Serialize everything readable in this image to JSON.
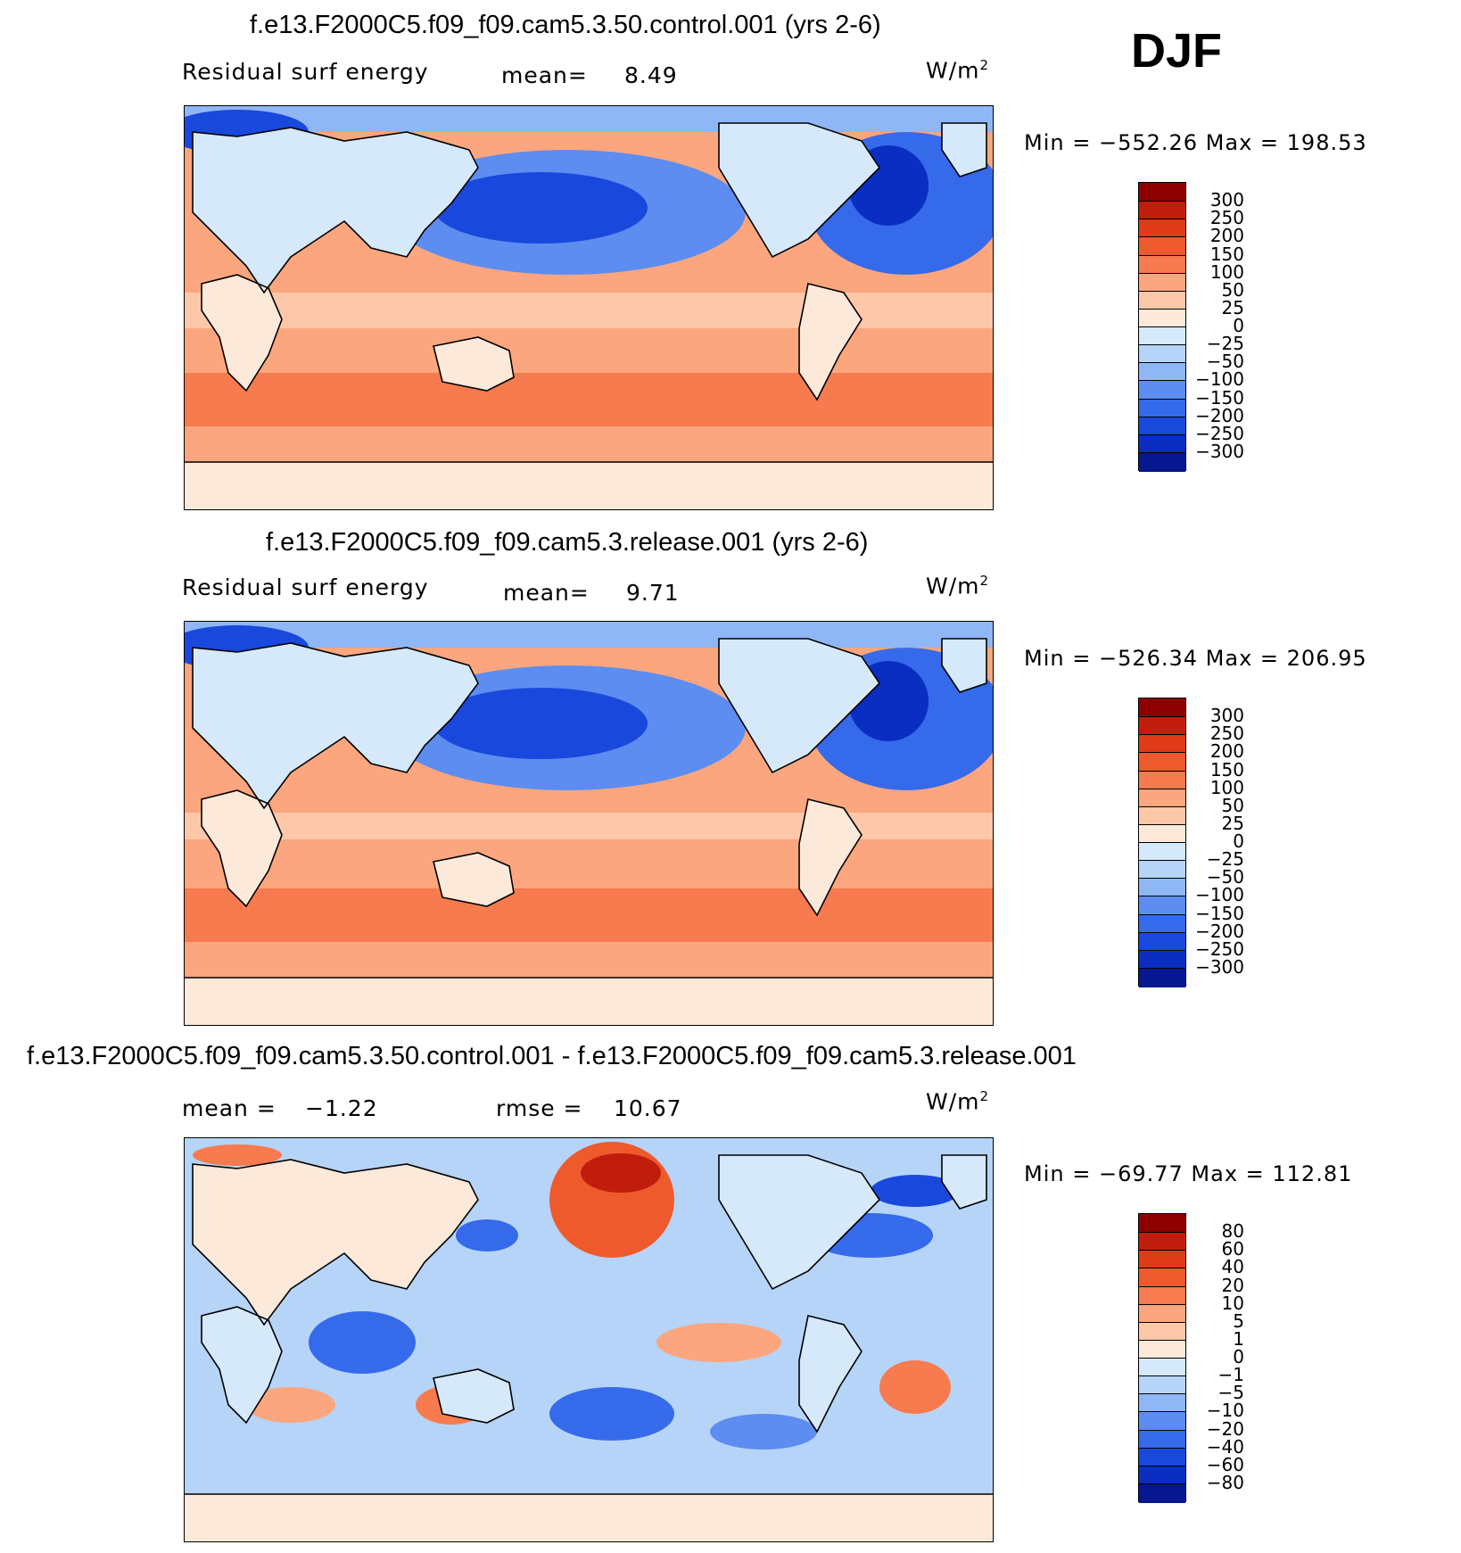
{
  "season": "DJF",
  "unit_base": "W/m",
  "unit_exp": "2",
  "panels": [
    {
      "title": "f.e13.F2000C5.f09_f09.cam5.3.50.control.001 (yrs 2-6)",
      "var_label": "Residual surf energy",
      "stat1_label": "mean=",
      "stat1_value": "8.49",
      "stat2_label": "",
      "stat2_value": "",
      "minmax": "Min = −552.26 Max = 198.53"
    },
    {
      "title": "f.e13.F2000C5.f09_f09.cam5.3.release.001 (yrs 2-6)",
      "var_label": "Residual surf energy",
      "stat1_label": "mean=",
      "stat1_value": "9.71",
      "stat2_label": "",
      "stat2_value": "",
      "minmax": "Min = −526.34 Max = 206.95"
    },
    {
      "title": "f.e13.F2000C5.f09_f09.cam5.3.50.control.001 - f.e13.F2000C5.f09_f09.cam5.3.release.001",
      "var_label": "",
      "stat1_label": "mean =",
      "stat1_value": "−1.22",
      "stat2_label": "rmse =",
      "stat2_value": "10.67",
      "minmax": "Min = −69.77 Max = 112.81"
    }
  ],
  "colors": {
    "warm": [
      "#fde9d9",
      "#fcc8a9",
      "#fba67e",
      "#f77b4e",
      "#ef5a2d",
      "#e03a18",
      "#c11d0d",
      "#8e0000"
    ],
    "cool": [
      "#d6e9fb",
      "#b6d4f7",
      "#8fb6f5",
      "#5d8df0",
      "#356aea",
      "#1948dc",
      "#0a2ec2",
      "#06178f"
    ],
    "land": "#d6e9fb",
    "antarctica": "#fde9d9"
  },
  "chart_data": [
    {
      "type": "heatmap",
      "title": "f.e13.F2000C5.f09_f09.cam5.3.50.control.001 (yrs 2-6)",
      "variable": "Residual surf energy",
      "units": "W/m2",
      "mean": 8.49,
      "min": -552.26,
      "max": 198.53,
      "contour_levels": [
        "300",
        "250",
        "200",
        "150",
        "100",
        "50",
        "25",
        "0",
        "−25",
        "−50",
        "−100",
        "−150",
        "−200",
        "−250",
        "−300"
      ]
    },
    {
      "type": "heatmap",
      "title": "f.e13.F2000C5.f09_f09.cam5.3.release.001 (yrs 2-6)",
      "variable": "Residual surf energy",
      "units": "W/m2",
      "mean": 9.71,
      "min": -526.34,
      "max": 206.95,
      "contour_levels": [
        "300",
        "250",
        "200",
        "150",
        "100",
        "50",
        "25",
        "0",
        "−25",
        "−50",
        "−100",
        "−150",
        "−200",
        "−250",
        "−300"
      ]
    },
    {
      "type": "heatmap",
      "title": "f.e13.F2000C5.f09_f09.cam5.3.50.control.001 - f.e13.F2000C5.f09_f09.cam5.3.release.001",
      "units": "W/m2",
      "mean": -1.22,
      "rmse": 10.67,
      "min": -69.77,
      "max": 112.81,
      "contour_levels": [
        "80",
        "60",
        "40",
        "20",
        "10",
        "5",
        "1",
        "0",
        "−1",
        "−5",
        "−10",
        "−20",
        "−40",
        "−60",
        "−80"
      ]
    }
  ]
}
